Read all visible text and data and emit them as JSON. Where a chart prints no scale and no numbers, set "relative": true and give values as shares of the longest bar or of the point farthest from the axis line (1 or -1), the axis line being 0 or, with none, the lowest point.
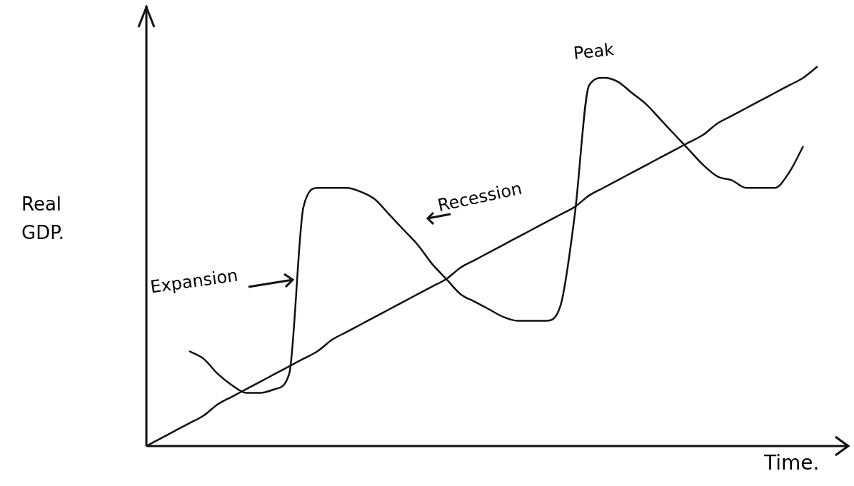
{
  "chart_data": {
    "type": "line",
    "relative": true,
    "xlabel": "Time.",
    "ylabel": "Real GDP.",
    "legend": false,
    "marker": "none",
    "line_style": "solid",
    "categories": [
      null,
      null,
      null,
      null,
      null,
      null,
      null,
      null,
      null,
      null,
      null,
      null,
      null,
      null,
      null,
      null,
      null,
      null,
      null,
      null,
      null,
      null,
      null,
      null,
      null,
      null,
      null,
      null,
      null,
      null,
      null,
      null,
      null,
      null,
      null,
      null,
      null,
      null,
      null,
      null,
      null,
      null,
      null,
      null,
      null,
      null,
      null,
      null
    ],
    "series": [
      {
        "color": "#111111",
        "values": [
          null,
          null,
          null,
          0.25,
          0.23,
          0.19,
          0.16,
          0.14,
          0.14,
          0.15,
          0.19,
          0.63,
          0.68,
          0.68,
          0.68,
          0.67,
          0.65,
          0.61,
          0.57,
          0.53,
          0.48,
          0.44,
          0.4,
          0.38,
          0.36,
          0.34,
          0.33,
          0.33,
          0.33,
          0.37,
          0.61,
          0.95,
          0.97,
          0.96,
          0.93,
          0.9,
          0.86,
          0.82,
          0.78,
          0.74,
          0.71,
          0.7,
          0.68,
          0.68,
          0.68,
          0.72,
          0.79,
          null
        ]
      },
      {
        "color": "#111111",
        "values": [
          0,
          0.02,
          0.04,
          0.06,
          0.08,
          0.11,
          0.13,
          0.15,
          0.17,
          0.19,
          0.21,
          0.23,
          0.25,
          0.28,
          0.3,
          0.32,
          0.34,
          0.36,
          0.38,
          0.4,
          0.42,
          0.44,
          0.47,
          0.49,
          0.51,
          0.53,
          0.55,
          0.57,
          0.59,
          0.61,
          0.63,
          0.66,
          0.68,
          0.7,
          0.72,
          0.74,
          0.76,
          0.78,
          0.8,
          0.82,
          0.85,
          0.87,
          0.89,
          0.91,
          0.93,
          0.95,
          0.97,
          1
        ]
      }
    ],
    "annotations": [
      "Expansion",
      "Recession",
      "Peak"
    ]
  }
}
